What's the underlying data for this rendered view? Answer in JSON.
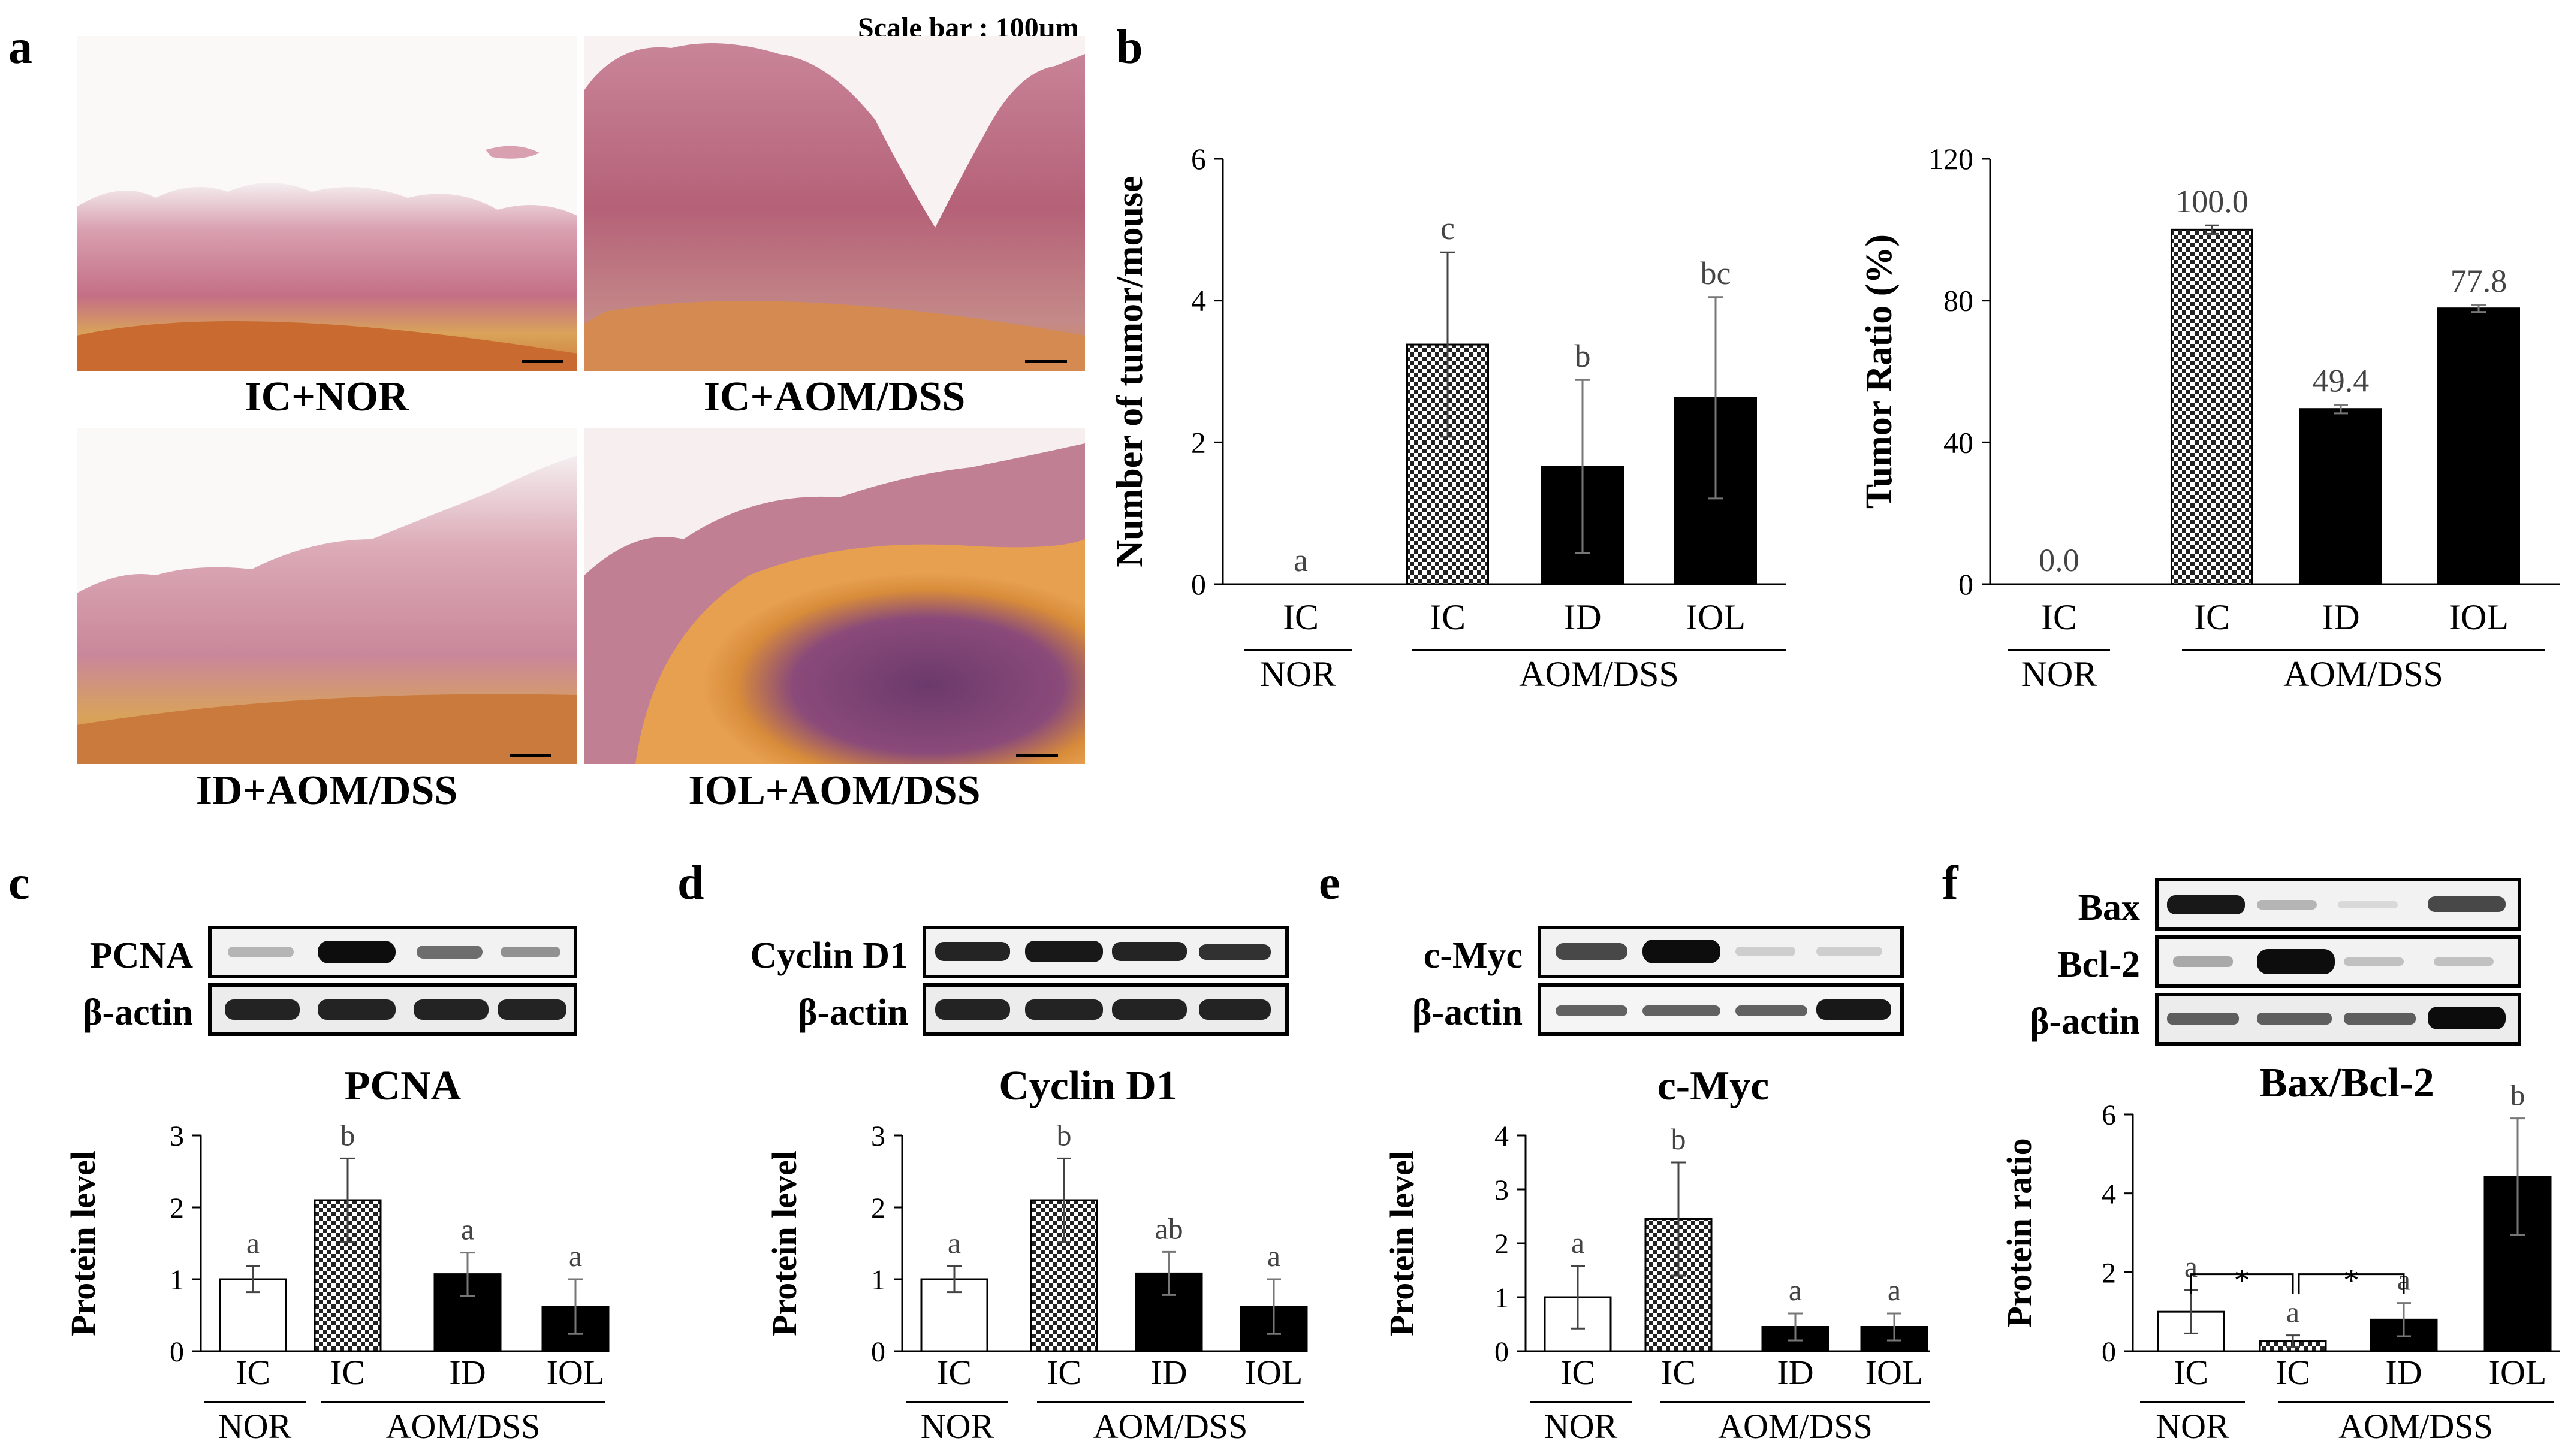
{
  "panels": {
    "a": "a",
    "b": "b",
    "c": "c",
    "d": "d",
    "e": "e",
    "f": "f"
  },
  "histology": {
    "scale_bar_text": "Scale bar : 100μm",
    "captions": [
      "IC+NOR",
      "IC+AOM/DSS",
      "ID+AOM/DSS",
      "IOL+AOM/DSS"
    ]
  },
  "groups": {
    "nor": "NOR",
    "aomdss": "AOM/DSS"
  },
  "blots": {
    "c": {
      "rows": [
        "PCNA",
        "β-actin"
      ]
    },
    "d": {
      "rows": [
        "Cyclin D1",
        "β-actin"
      ]
    },
    "e": {
      "rows": [
        "c-Myc",
        "β-actin"
      ]
    },
    "f": {
      "rows": [
        "Bax",
        "Bcl-2",
        "β-actin"
      ]
    }
  },
  "colors": {
    "ic_nor": "#ffffff",
    "ic_aom": "#checker",
    "id": "#000000",
    "iol": "#000000",
    "label_gray": "#444444"
  },
  "chart_data": [
    {
      "id": "b1",
      "type": "bar",
      "title": "",
      "ylabel": "Number of tumor/mouse",
      "ylim": [
        0,
        6
      ],
      "yticks": [
        0,
        2,
        4,
        6
      ],
      "categories": [
        "IC",
        "IC",
        "ID",
        "IOL"
      ],
      "fills": [
        "none",
        "checker",
        "black",
        "black"
      ],
      "values": [
        0,
        3.38,
        1.66,
        2.63
      ],
      "errors": [
        0,
        1.3,
        1.22,
        1.42
      ],
      "letters": [
        "a",
        "c",
        "b",
        "bc"
      ],
      "group_labels": [
        "NOR",
        "AOM/DSS"
      ]
    },
    {
      "id": "b2",
      "type": "bar",
      "title": "",
      "ylabel": "Tumor Ratio (%)",
      "ylim": [
        0,
        120
      ],
      "yticks": [
        0,
        40,
        80,
        120
      ],
      "categories": [
        "IC",
        "IC",
        "ID",
        "IOL"
      ],
      "fills": [
        "none",
        "checker",
        "black",
        "black"
      ],
      "values": [
        0,
        100,
        49.4,
        77.8
      ],
      "errors": [
        0,
        1.2,
        1.2,
        1.0
      ],
      "letters": [
        "0.0",
        "100.0",
        "49.4",
        "77.8"
      ],
      "group_labels": [
        "NOR",
        "AOM/DSS"
      ]
    },
    {
      "id": "c",
      "type": "bar",
      "title": "PCNA",
      "ylabel": "Protein level",
      "ylim": [
        0,
        3
      ],
      "yticks": [
        0,
        1,
        2,
        3
      ],
      "categories": [
        "IC",
        "IC",
        "ID",
        "IOL"
      ],
      "fills": [
        "white",
        "checker",
        "black",
        "black"
      ],
      "values": [
        1.0,
        2.1,
        1.07,
        0.62
      ],
      "errors": [
        0.18,
        0.58,
        0.3,
        0.38
      ],
      "letters": [
        "a",
        "b",
        "a",
        "a"
      ],
      "group_labels": [
        "NOR",
        "AOM/DSS"
      ]
    },
    {
      "id": "d",
      "type": "bar",
      "title": "Cyclin D1",
      "ylabel": "Protein level",
      "ylim": [
        0,
        3
      ],
      "yticks": [
        0,
        1,
        2,
        3
      ],
      "categories": [
        "IC",
        "IC",
        "ID",
        "IOL"
      ],
      "fills": [
        "white",
        "checker",
        "black",
        "black"
      ],
      "values": [
        1.0,
        2.1,
        1.08,
        0.62
      ],
      "errors": [
        0.18,
        0.58,
        0.3,
        0.38
      ],
      "letters": [
        "a",
        "b",
        "ab",
        "a"
      ],
      "group_labels": [
        "NOR",
        "AOM/DSS"
      ]
    },
    {
      "id": "e",
      "type": "bar",
      "title": "c-Myc",
      "ylabel": "Protein level",
      "ylim": [
        0,
        4
      ],
      "yticks": [
        0,
        1,
        2,
        3,
        4
      ],
      "categories": [
        "IC",
        "IC",
        "ID",
        "IOL"
      ],
      "fills": [
        "white",
        "checker",
        "black",
        "black"
      ],
      "values": [
        1.0,
        2.45,
        0.45,
        0.45
      ],
      "errors": [
        0.58,
        1.05,
        0.25,
        0.25
      ],
      "letters": [
        "a",
        "b",
        "a",
        "a"
      ],
      "group_labels": [
        "NOR",
        "AOM/DSS"
      ]
    },
    {
      "id": "f",
      "type": "bar",
      "title": "Bax/Bcl-2",
      "ylabel": "Protein ratio",
      "ylim": [
        0,
        6
      ],
      "yticks": [
        0,
        2,
        4,
        6
      ],
      "categories": [
        "IC",
        "IC",
        "ID",
        "IOL"
      ],
      "fills": [
        "white",
        "checker",
        "black",
        "black"
      ],
      "values": [
        1.0,
        0.25,
        0.8,
        4.42
      ],
      "errors": [
        0.55,
        0.15,
        0.42,
        1.48
      ],
      "letters": [
        "a",
        "a",
        "a",
        "b"
      ],
      "group_labels": [
        "NOR",
        "AOM/DSS"
      ],
      "significance": [
        "*",
        "*"
      ]
    }
  ]
}
